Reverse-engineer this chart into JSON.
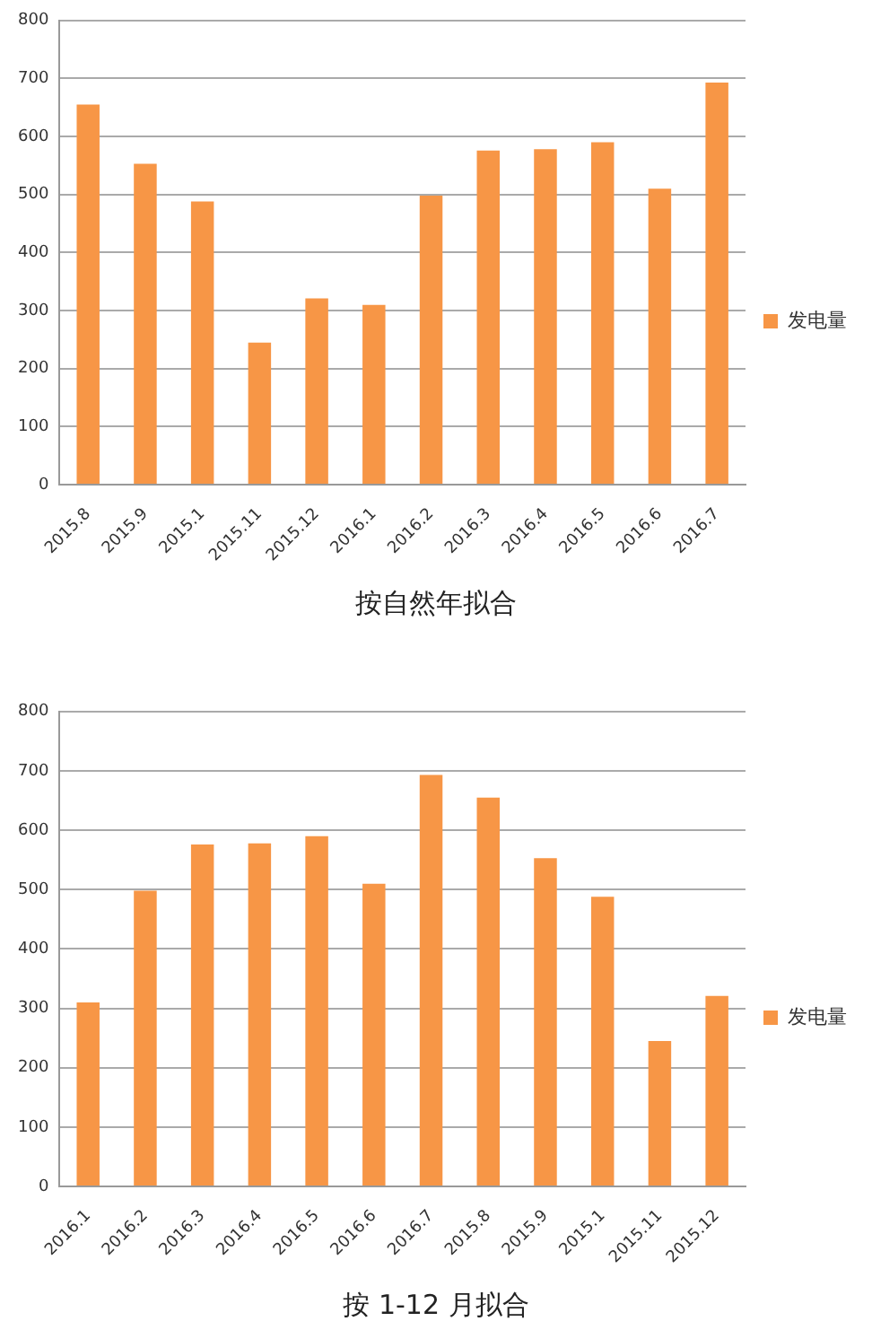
{
  "chart_data": [
    {
      "type": "bar",
      "title": "按自然年拟合",
      "categories": [
        "2015.8",
        "2015.9",
        "2015.1",
        "2015.11",
        "2015.12",
        "2016.1",
        "2016.2",
        "2016.3",
        "2016.4",
        "2016.5",
        "2016.6",
        "2016.7"
      ],
      "series": [
        {
          "name": "发电量",
          "color": "#f79646",
          "values": [
            655,
            553,
            488,
            245,
            321,
            310,
            498,
            576,
            578,
            590,
            510,
            693
          ]
        }
      ],
      "ylim": [
        0,
        800
      ],
      "yticks": [
        0,
        100,
        200,
        300,
        400,
        500,
        600,
        700,
        800
      ],
      "grid": "y",
      "legend": "right"
    },
    {
      "type": "bar",
      "title": "按 1-12 月拟合",
      "categories": [
        "2016.1",
        "2016.2",
        "2016.3",
        "2016.4",
        "2016.5",
        "2016.6",
        "2016.7",
        "2015.8",
        "2015.9",
        "2015.1",
        "2015.11",
        "2015.12"
      ],
      "series": [
        {
          "name": "发电量",
          "color": "#f79646",
          "values": [
            310,
            498,
            576,
            578,
            590,
            510,
            693,
            655,
            553,
            488,
            245,
            321
          ]
        }
      ],
      "ylim": [
        0,
        800
      ],
      "yticks": [
        0,
        100,
        200,
        300,
        400,
        500,
        600,
        700,
        800
      ],
      "grid": "y",
      "legend": "right"
    }
  ]
}
